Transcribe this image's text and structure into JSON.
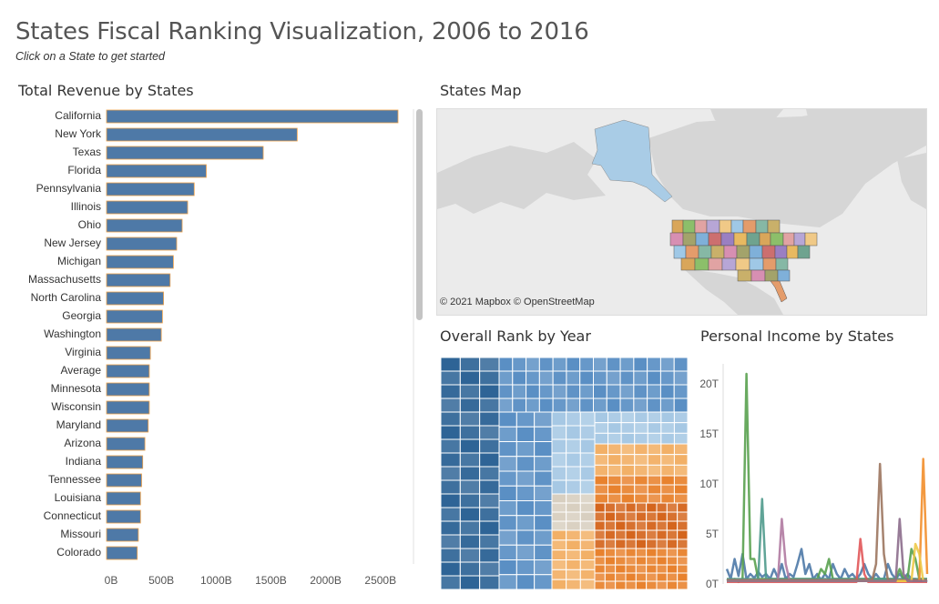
{
  "header": {
    "title": "States Fiscal Ranking Visualization, 2006 to 2016",
    "subtitle": "Click on a State to get started"
  },
  "sheets": {
    "revenue_title": "Total Revenue by States",
    "map_title": "States Map",
    "rank_title": "Overall Rank by Year",
    "income_title": "Personal Income by States"
  },
  "map": {
    "attribution": "© 2021 Mapbox  © OpenStreetMap",
    "land_color": "#d6d6d6",
    "water_color": "#ebebeb",
    "alaska_color": "#a9cce6"
  },
  "colors": {
    "bar_fill": "#4e79a7",
    "bar_stroke": "#f0a24a",
    "dark_blue": "#2e6496",
    "mid_blue": "#5a8fc4",
    "light_blue": "#a6c8e4",
    "beige": "#d8cfc0",
    "light_orange": "#f2b067",
    "orange": "#e8822e",
    "dark_orange": "#d4651d"
  },
  "chart_data": [
    {
      "id": "revenue",
      "type": "bar",
      "orientation": "horizontal",
      "categories": [
        "California",
        "New York",
        "Texas",
        "Florida",
        "Pennsylvania",
        "Illinois",
        "Ohio",
        "New Jersey",
        "Michigan",
        "Massachusetts",
        "North Carolina",
        "Georgia",
        "Washington",
        "Virginia",
        "Average",
        "Minnesota",
        "Wisconsin",
        "Maryland",
        "Arizona",
        "Indiana",
        "Tennessee",
        "Louisiana",
        "Connecticut",
        "Missouri",
        "Colorado"
      ],
      "values": [
        2660,
        1740,
        1430,
        910,
        800,
        740,
        690,
        640,
        610,
        580,
        520,
        510,
        500,
        400,
        390,
        390,
        390,
        380,
        350,
        330,
        320,
        310,
        310,
        290,
        280
      ],
      "xlim": [
        0,
        2800
      ],
      "ticks": [
        0,
        500,
        1000,
        1500,
        2000,
        2500
      ],
      "tick_labels": [
        "0B",
        "500B",
        "1000B",
        "1500B",
        "2000B",
        "2500B"
      ]
    },
    {
      "id": "rank",
      "type": "treemap",
      "groups": [
        {
          "color_key": "dark_blue",
          "weight": 22
        },
        {
          "color_key": "mid_blue",
          "weight": 33
        },
        {
          "color_key": "light_blue",
          "weight": 18
        },
        {
          "color_key": "beige",
          "weight": 9
        },
        {
          "color_key": "light_orange",
          "weight": 18
        },
        {
          "color_key": "orange",
          "weight": 22
        },
        {
          "color_key": "dark_orange",
          "weight": 18
        }
      ]
    },
    {
      "id": "income",
      "type": "line",
      "ylim": [
        0,
        22
      ],
      "yticks": [
        0,
        5,
        10,
        15,
        20
      ],
      "ytick_labels": [
        "0T",
        "5T",
        "10T",
        "15T",
        "20T"
      ],
      "series": [
        {
          "color": "#4e79a7",
          "values": [
            1.5,
            0.5,
            2.5,
            0.8,
            3,
            0.5,
            1,
            0.6,
            1.2,
            0.7,
            1,
            0.5,
            1.5,
            0.6,
            2,
            0.5,
            1,
            0.7,
            2,
            3.5,
            1,
            2,
            0.5,
            1,
            0.4,
            1,
            0.5,
            2,
            1,
            0.5,
            1.5,
            0.7,
            1,
            0.5,
            1,
            2,
            1,
            0.5,
            1,
            0.5,
            0.5,
            2,
            1,
            0.5,
            1,
            0.5,
            1,
            0.5,
            0.5,
            0.3,
            0.5,
            0.2
          ]
        },
        {
          "color": "#59a14f",
          "values": [
            0.5,
            0.3,
            0.5,
            0.2,
            0.5,
            21,
            2.5,
            2.5,
            0.5,
            0.5,
            0.5,
            0.5,
            0.5,
            0.5,
            0.5,
            0.5,
            0.5,
            0.5,
            0.5,
            0.5,
            0.5,
            0.5,
            0.5,
            0.5,
            1.5,
            1,
            2.5,
            0.5,
            0.5,
            0.5,
            0.5,
            0.5,
            0.5,
            0.5,
            0.5,
            0.5,
            0.5,
            0.5,
            0.5,
            0.5,
            0.5,
            0.5,
            0.5,
            0.5,
            1.5,
            0.5,
            0.5,
            3.5,
            2.5,
            0.5,
            0.5,
            0.5
          ]
        },
        {
          "color": "#4f9a8c",
          "values": [
            0.5,
            0.5,
            0.5,
            0.5,
            0.5,
            0.5,
            0.5,
            0.5,
            0.5,
            8.5,
            0.5,
            0.5,
            0.5,
            0.5,
            0.5,
            0.5,
            0.5,
            0.5,
            0.5,
            0.5,
            0.5,
            0.5,
            0.5,
            0.5,
            0.5,
            0.5,
            0.5,
            0.5,
            0.5,
            0.5,
            0.5,
            0.5,
            0.5,
            0.5,
            0.5,
            0.5,
            0.5,
            0.5,
            0.5,
            0.5,
            0.5,
            0.5,
            0.5,
            0.5,
            0.5,
            0.5,
            0.5,
            0.5,
            0.5,
            0.5,
            0.5,
            0.5
          ]
        },
        {
          "color": "#b07aa1",
          "values": [
            0.3,
            0.3,
            0.3,
            0.3,
            0.3,
            0.3,
            0.3,
            0.3,
            0.3,
            0.3,
            0.3,
            0.3,
            0.3,
            0.3,
            6.5,
            2,
            0.3,
            0.3,
            0.3,
            0.3,
            0.3,
            0.3,
            0.3,
            0.3,
            0.3,
            0.3,
            0.3,
            0.3,
            0.3,
            0.3,
            0.3,
            0.3,
            0.3,
            0.3,
            0.3,
            0.3,
            0.3,
            0.3,
            0.3,
            0.3,
            0.3,
            0.3,
            0.3,
            0.3,
            0.3,
            0.3,
            0.3,
            0.3,
            0.3,
            0.3,
            0.3,
            0.3
          ]
        },
        {
          "color": "#e15759",
          "values": [
            0.2,
            0.2,
            0.2,
            0.2,
            0.2,
            0.2,
            0.2,
            0.2,
            0.2,
            0.2,
            0.2,
            0.2,
            0.2,
            0.2,
            0.2,
            0.2,
            0.2,
            0.2,
            0.2,
            0.2,
            0.2,
            0.2,
            0.2,
            0.2,
            0.2,
            0.2,
            0.2,
            0.2,
            0.2,
            0.2,
            0.2,
            0.2,
            0.2,
            0.2,
            4.5,
            1,
            0.2,
            0.2,
            0.2,
            0.2,
            0.2,
            0.2,
            0.2,
            0.2,
            0.2,
            0.2,
            0.2,
            0.2,
            0.2,
            0.2,
            0.2,
            0.2
          ]
        },
        {
          "color": "#9c755f",
          "values": [
            0.4,
            0.4,
            0.4,
            0.4,
            0.4,
            0.4,
            0.4,
            0.4,
            0.4,
            0.4,
            0.4,
            0.4,
            0.4,
            0.4,
            0.4,
            0.4,
            0.4,
            0.4,
            0.4,
            0.4,
            0.4,
            0.4,
            0.4,
            0.4,
            0.4,
            0.4,
            0.4,
            0.4,
            0.4,
            0.4,
            0.4,
            0.4,
            0.4,
            0.4,
            0.4,
            0.4,
            0.4,
            0.4,
            2,
            12,
            3,
            0.4,
            0.4,
            0.4,
            0.4,
            0.4,
            0.4,
            0.4,
            0.4,
            0.4,
            0.4,
            0.4
          ]
        },
        {
          "color": "#f28e2b",
          "values": [
            0.3,
            0.3,
            0.3,
            0.3,
            0.3,
            0.3,
            0.3,
            0.3,
            0.3,
            0.3,
            0.3,
            0.3,
            0.3,
            0.3,
            0.3,
            0.3,
            0.3,
            0.3,
            0.3,
            0.3,
            0.3,
            0.3,
            0.3,
            0.3,
            0.3,
            0.3,
            0.3,
            0.3,
            0.3,
            0.3,
            0.3,
            0.3,
            0.3,
            0.3,
            0.3,
            0.3,
            0.3,
            0.3,
            0.3,
            0.3,
            0.3,
            0.3,
            0.3,
            0.3,
            0.3,
            0.3,
            0.3,
            0.3,
            0.3,
            0.3,
            12.5,
            1
          ]
        },
        {
          "color": "#edc948",
          "values": [
            0.3,
            0.3,
            0.3,
            0.3,
            0.3,
            0.3,
            0.3,
            0.3,
            0.3,
            0.3,
            0.3,
            0.3,
            0.3,
            0.3,
            0.3,
            0.3,
            0.3,
            0.3,
            0.3,
            0.3,
            0.3,
            0.3,
            0.3,
            0.3,
            0.3,
            0.3,
            0.3,
            0.3,
            0.3,
            0.3,
            0.3,
            0.3,
            0.3,
            0.3,
            0.3,
            0.3,
            0.3,
            0.3,
            0.3,
            0.3,
            0.3,
            0.3,
            0.3,
            0.3,
            0.3,
            0.3,
            0.3,
            0.3,
            4,
            3,
            0.3,
            0.3
          ]
        },
        {
          "color": "#8c6d8c",
          "values": [
            0.3,
            0.3,
            0.3,
            0.3,
            0.3,
            0.3,
            0.3,
            0.3,
            0.3,
            0.3,
            0.3,
            0.3,
            0.3,
            0.3,
            0.3,
            0.3,
            0.3,
            0.3,
            0.3,
            0.3,
            0.3,
            0.3,
            0.3,
            0.3,
            0.3,
            0.3,
            0.3,
            0.3,
            0.3,
            0.3,
            0.3,
            0.3,
            0.3,
            0.3,
            0.3,
            0.3,
            0.3,
            0.3,
            0.3,
            0.3,
            0.3,
            0.3,
            0.3,
            0.3,
            6.5,
            1,
            0.3,
            0.3,
            0.3,
            0.3,
            0.3,
            0.3
          ]
        }
      ]
    }
  ]
}
